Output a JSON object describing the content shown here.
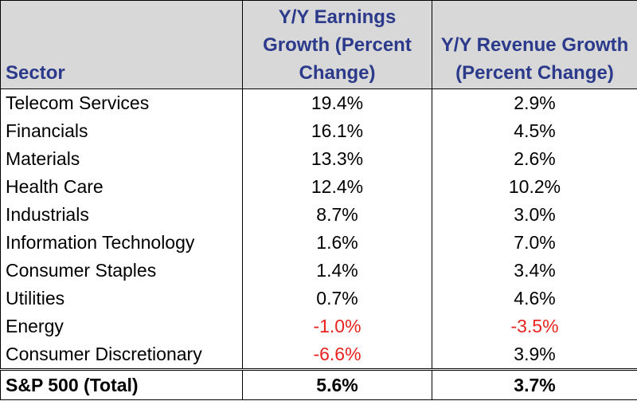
{
  "chart_data": {
    "type": "table",
    "columns": [
      "Sector",
      "Y/Y Earnings Growth (Percent Change)",
      "Y/Y Revenue Growth (Percent Change)"
    ],
    "header": {
      "sector": "Sector",
      "earnings": "Y/Y Earnings Growth (Percent Change)",
      "revenue": "Y/Y Revenue Growth (Percent Change)"
    },
    "rows": [
      {
        "sector": "Telecom Services",
        "earnings": "19.4%",
        "revenue": "2.9%"
      },
      {
        "sector": "Financials",
        "earnings": "16.1%",
        "revenue": "4.5%"
      },
      {
        "sector": "Materials",
        "earnings": "13.3%",
        "revenue": "2.6%"
      },
      {
        "sector": "Health Care",
        "earnings": "12.4%",
        "revenue": "10.2%"
      },
      {
        "sector": "Industrials",
        "earnings": "8.7%",
        "revenue": "3.0%"
      },
      {
        "sector": "Information Technology",
        "earnings": "1.6%",
        "revenue": "7.0%"
      },
      {
        "sector": "Consumer Staples",
        "earnings": "1.4%",
        "revenue": "3.4%"
      },
      {
        "sector": "Utilities",
        "earnings": "0.7%",
        "revenue": "4.6%"
      },
      {
        "sector": "Energy",
        "earnings": "-1.0%",
        "revenue": "-3.5%"
      },
      {
        "sector": "Consumer Discretionary",
        "earnings": "-6.6%",
        "revenue": "3.9%"
      }
    ],
    "total": {
      "sector": "S&P 500 (Total)",
      "earnings": "5.6%",
      "revenue": "3.7%"
    }
  },
  "colors": {
    "header_background": "#d8d8d8",
    "header_text": "#2b3a8a",
    "negative_value": "#e8231f",
    "text": "#000000"
  }
}
